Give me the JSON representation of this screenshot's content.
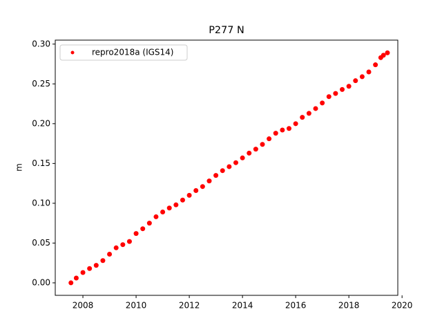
{
  "chart_data": {
    "type": "scatter",
    "title": "P277 N",
    "y_label": "m",
    "xlim": [
      2006.96,
      2019.84
    ],
    "ylim": [
      -0.0157,
      0.305
    ],
    "xticks": [
      2008,
      2010,
      2012,
      2014,
      2016,
      2018,
      2020
    ],
    "yticks": [
      {
        "value": 0,
        "label": "0.00"
      },
      {
        "value": 0.05,
        "label": "0.05"
      },
      {
        "value": 0.1,
        "label": "0.10"
      },
      {
        "value": 0.15,
        "label": "0.15"
      },
      {
        "value": 0.2,
        "label": "0.20"
      },
      {
        "value": 0.25,
        "label": "0.25"
      },
      {
        "value": 0.3,
        "label": "0.30"
      }
    ],
    "legend": "upper left",
    "series": [
      {
        "name": "repro2018a (IGS14)",
        "color": "#ff0000",
        "x": [
          2007.55,
          2007.75,
          2008.0,
          2008.25,
          2008.5,
          2008.75,
          2009.0,
          2009.25,
          2009.5,
          2009.75,
          2010.0,
          2010.25,
          2010.5,
          2010.75,
          2011.0,
          2011.25,
          2011.5,
          2011.75,
          2012.0,
          2012.25,
          2012.5,
          2012.75,
          2013.0,
          2013.25,
          2013.5,
          2013.75,
          2014.0,
          2014.25,
          2014.5,
          2014.75,
          2015.0,
          2015.25,
          2015.5,
          2015.75,
          2016.0,
          2016.25,
          2016.5,
          2016.75,
          2017.0,
          2017.25,
          2017.5,
          2017.75,
          2018.0,
          2018.25,
          2018.5,
          2018.75,
          2019.0,
          2019.2,
          2019.3,
          2019.45
        ],
        "values": [
          0.0,
          0.006,
          0.013,
          0.018,
          0.022,
          0.028,
          0.036,
          0.044,
          0.048,
          0.052,
          0.062,
          0.068,
          0.075,
          0.083,
          0.089,
          0.094,
          0.098,
          0.104,
          0.11,
          0.116,
          0.121,
          0.128,
          0.135,
          0.141,
          0.146,
          0.151,
          0.157,
          0.163,
          0.168,
          0.174,
          0.181,
          0.188,
          0.192,
          0.194,
          0.2,
          0.208,
          0.213,
          0.219,
          0.226,
          0.234,
          0.238,
          0.243,
          0.247,
          0.254,
          0.259,
          0.265,
          0.274,
          0.283,
          0.286,
          0.289
        ]
      }
    ]
  }
}
